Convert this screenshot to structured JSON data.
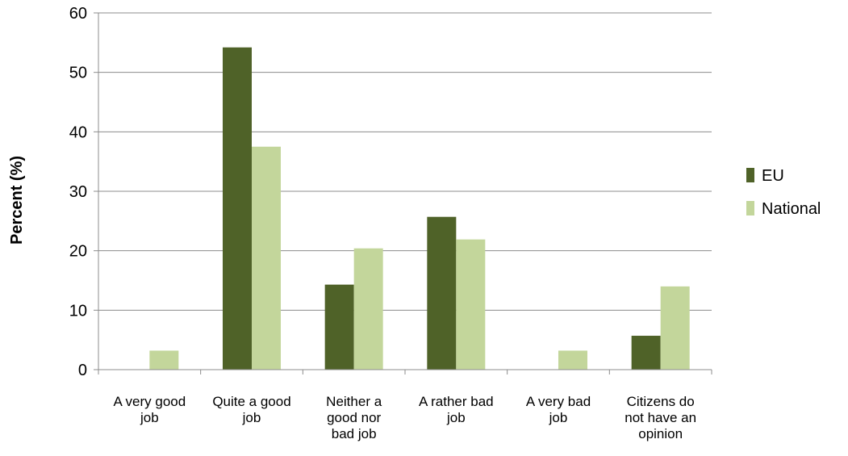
{
  "chart_data": {
    "type": "bar",
    "title": "",
    "xlabel": "",
    "ylabel": "Percent (%)",
    "ylim": [
      0,
      60
    ],
    "yticks": [
      0,
      10,
      20,
      30,
      40,
      50,
      60
    ],
    "grid": true,
    "legend_position": "right",
    "categories": [
      [
        "A very good",
        "job"
      ],
      [
        "Quite a good",
        "job"
      ],
      [
        "Neither a",
        "good nor",
        "bad job"
      ],
      [
        "A rather bad",
        "job"
      ],
      [
        "A very bad",
        "job"
      ],
      [
        "Citizens do",
        "not have an",
        "opinion"
      ]
    ],
    "series": [
      {
        "name": "EU",
        "color": "#4f6228",
        "values": [
          0,
          54.2,
          14.3,
          25.7,
          0,
          5.7
        ]
      },
      {
        "name": "National",
        "color": "#c3d69b",
        "values": [
          3.2,
          37.5,
          20.4,
          21.9,
          3.2,
          14.0
        ]
      }
    ]
  }
}
